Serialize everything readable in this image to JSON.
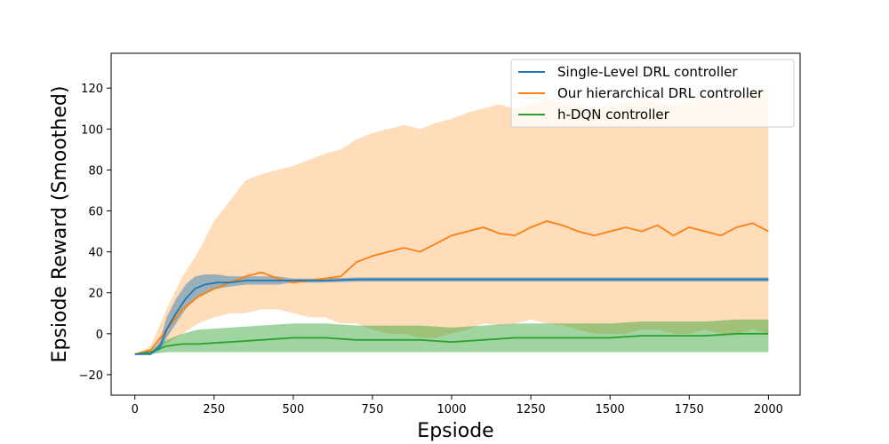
{
  "chart_data": {
    "type": "line",
    "title": "",
    "xlabel": "Epsiode",
    "ylabel": "Epsiode Reward (Smoothed)",
    "xlim": [
      -75,
      2100
    ],
    "ylim": [
      -30,
      137
    ],
    "xticks": [
      0,
      250,
      500,
      750,
      1000,
      1250,
      1500,
      1750,
      2000
    ],
    "yticks": [
      -20,
      0,
      20,
      40,
      60,
      80,
      100,
      120
    ],
    "grid": false,
    "legend_position": "top-right",
    "series": [
      {
        "name": "Single-Level DRL controller",
        "color": "#1f77b4",
        "band_color": "#1f77b4",
        "x": [
          0,
          50,
          80,
          100,
          130,
          160,
          190,
          220,
          260,
          300,
          350,
          400,
          450,
          500,
          550,
          600,
          700,
          800,
          900,
          1000,
          1200,
          1400,
          1600,
          1800,
          2000
        ],
        "y": [
          -10,
          -10,
          -6,
          2,
          10,
          17,
          22,
          24,
          25,
          25,
          26,
          26,
          26,
          26,
          26,
          26,
          26.5,
          26.5,
          26.5,
          26.5,
          26.5,
          26.5,
          26.5,
          26.5,
          26.5
        ],
        "lower": [
          -10,
          -10,
          -8,
          -2,
          5,
          12,
          17,
          20,
          22,
          23,
          24,
          24,
          24,
          25,
          25,
          25,
          25.5,
          25.5,
          25.5,
          25.5,
          25.5,
          25.5,
          25.5,
          25.5,
          25.5
        ],
        "upper": [
          -10,
          -10,
          -3,
          8,
          17,
          24,
          28,
          29,
          29,
          28,
          28,
          28,
          28,
          27,
          27,
          27,
          27.5,
          27.5,
          27.5,
          27.5,
          27.5,
          27.5,
          27.5,
          27.5,
          27.5
        ]
      },
      {
        "name": "Our hierarchical DRL controller",
        "color": "#ff7f0e",
        "band_color": "#ffbb78",
        "x": [
          0,
          50,
          100,
          150,
          200,
          250,
          300,
          350,
          400,
          450,
          500,
          550,
          600,
          650,
          700,
          750,
          800,
          850,
          900,
          950,
          1000,
          1050,
          1100,
          1150,
          1200,
          1250,
          1300,
          1350,
          1400,
          1450,
          1500,
          1550,
          1600,
          1650,
          1700,
          1750,
          1800,
          1850,
          1900,
          1950,
          2000
        ],
        "y": [
          -10,
          -8,
          2,
          12,
          18,
          22,
          25,
          28,
          30,
          27,
          25,
          26,
          27,
          28,
          35,
          38,
          40,
          42,
          40,
          44,
          48,
          50,
          52,
          49,
          48,
          52,
          55,
          53,
          50,
          48,
          50,
          52,
          50,
          53,
          48,
          52,
          50,
          48,
          52,
          54,
          50
        ],
        "lower": [
          -10,
          -9,
          -5,
          0,
          5,
          8,
          10,
          10,
          12,
          12,
          10,
          8,
          8,
          5,
          5,
          2,
          0,
          0,
          -2,
          -2,
          0,
          2,
          5,
          4,
          5,
          7,
          5,
          4,
          2,
          0,
          0,
          0,
          2,
          2,
          0,
          0,
          2,
          0,
          0,
          2,
          0
        ],
        "upper": [
          -10,
          -6,
          12,
          28,
          40,
          55,
          65,
          75,
          78,
          80,
          82,
          85,
          88,
          90,
          95,
          98,
          100,
          102,
          100,
          103,
          105,
          108,
          110,
          112,
          110,
          112,
          115,
          113,
          112,
          110,
          112,
          113,
          115,
          113,
          112,
          114,
          116,
          114,
          115,
          118,
          120
        ]
      },
      {
        "name": "h-DQN controller",
        "color": "#2ca02c",
        "band_color": "#2ca02c",
        "x": [
          0,
          50,
          100,
          150,
          200,
          300,
          400,
          500,
          600,
          700,
          800,
          900,
          1000,
          1100,
          1200,
          1300,
          1400,
          1500,
          1600,
          1700,
          1800,
          1900,
          2000
        ],
        "y": [
          -10,
          -9,
          -6,
          -5,
          -5,
          -4,
          -3,
          -2,
          -2,
          -3,
          -3,
          -3,
          -4,
          -3,
          -2,
          -2,
          -2,
          -2,
          -1,
          -1,
          -1,
          0,
          0
        ],
        "lower": [
          -10,
          -10,
          -9,
          -9,
          -9,
          -9,
          -9,
          -9,
          -9,
          -9,
          -9,
          -9,
          -9,
          -9,
          -9,
          -9,
          -9,
          -9,
          -9,
          -9,
          -9,
          -9,
          -9
        ],
        "upper": [
          -10,
          -8,
          -3,
          0,
          2,
          3,
          4,
          5,
          5,
          4,
          4,
          4,
          3,
          4,
          5,
          5,
          5,
          5,
          6,
          6,
          6,
          7,
          7
        ]
      }
    ]
  }
}
